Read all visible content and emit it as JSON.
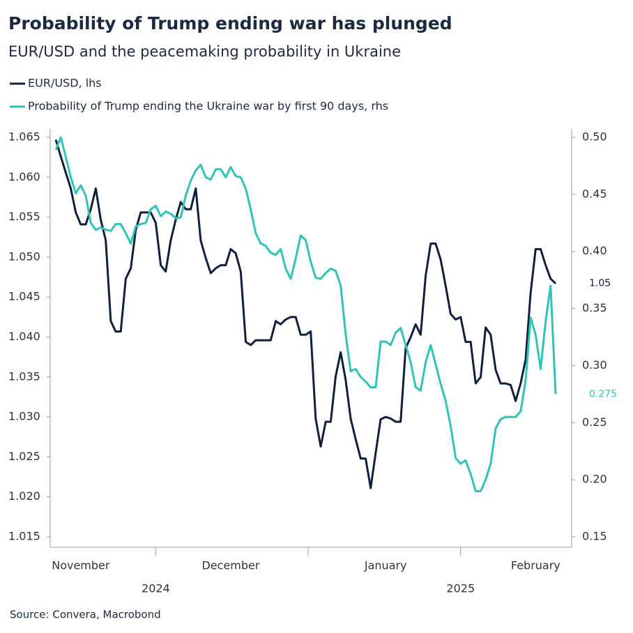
{
  "chart_data": {
    "type": "line",
    "title": "Probability of Trump ending war has plunged",
    "subtitle": "EUR/USD and the peacemaking probability in Ukraine",
    "source": "Source: Convera, Macrobond",
    "categories": [
      null,
      null,
      null,
      null,
      null,
      "November",
      null,
      null,
      null,
      null,
      null,
      null,
      null,
      null,
      null,
      null,
      null,
      null,
      null,
      null,
      null,
      null,
      null,
      null,
      null,
      null,
      null,
      null,
      null,
      null,
      null,
      null,
      null,
      null,
      null,
      "December",
      null,
      null,
      null,
      null,
      null,
      null,
      null,
      null,
      null,
      null,
      null,
      null,
      null,
      null,
      null,
      null,
      null,
      null,
      null,
      null,
      null,
      null,
      null,
      null,
      null,
      null,
      null,
      null,
      null,
      null,
      "January",
      null,
      null,
      null,
      null,
      null,
      null,
      null,
      null,
      null,
      null,
      null,
      null,
      null,
      null,
      null,
      null,
      null,
      null,
      null,
      null,
      null,
      null,
      null,
      null,
      null,
      null,
      null,
      null,
      null,
      "February",
      null,
      null,
      null,
      null
    ],
    "years": [
      "2024",
      "2025"
    ],
    "series": [
      {
        "name": "EUR/USD, lhs",
        "color": "#0f1f3d",
        "end_label": "1.05",
        "values": [
          1.0647,
          1.0626,
          1.0606,
          1.0586,
          1.0556,
          1.0541,
          1.0541,
          1.056,
          1.0586,
          1.0547,
          1.0521,
          1.042,
          1.0407,
          1.0407,
          1.0473,
          1.0486,
          1.0534,
          1.0556,
          1.0556,
          1.0556,
          1.0543,
          1.049,
          1.0482,
          1.0521,
          1.0547,
          1.0569,
          1.056,
          1.056,
          1.0586,
          1.0521,
          1.0499,
          1.048,
          1.0486,
          1.049,
          1.049,
          1.051,
          1.0505,
          1.0482,
          1.0394,
          1.039,
          1.0396,
          1.0396,
          1.0396,
          1.0396,
          1.042,
          1.0416,
          1.0422,
          1.0425,
          1.0425,
          1.0403,
          1.0403,
          1.0407,
          1.0298,
          1.0263,
          1.0294,
          1.0294,
          1.0351,
          1.0381,
          1.0346,
          1.0298,
          1.0272,
          1.0248,
          1.0248,
          1.0211,
          1.0255,
          1.0297,
          1.03,
          1.0298,
          1.0294,
          1.0294,
          1.0386,
          1.04,
          1.0416,
          1.0403,
          1.0477,
          1.0517,
          1.0517,
          1.0497,
          1.0464,
          1.0429,
          1.0422,
          1.0425,
          1.0394,
          1.0394,
          1.0342,
          1.035,
          1.0412,
          1.0403,
          1.0359,
          1.0342,
          1.0342,
          1.034,
          1.032,
          1.0342,
          1.0372,
          1.0455,
          1.051,
          1.051,
          1.049,
          1.0473,
          1.0467
        ]
      },
      {
        "name": "Probability of Trump ending the Ukraine war by first 90 days, rhs",
        "color": "#2ec4b6",
        "axis": "y2",
        "end_label": "0.275",
        "values": [
          0.489,
          0.5,
          0.483,
          0.465,
          0.451,
          0.458,
          0.449,
          0.425,
          0.419,
          0.421,
          0.419,
          0.418,
          0.424,
          0.424,
          0.416,
          0.407,
          0.422,
          0.424,
          0.425,
          0.437,
          0.44,
          0.431,
          0.435,
          0.433,
          0.429,
          0.43,
          0.449,
          0.462,
          0.471,
          0.476,
          0.465,
          0.463,
          0.472,
          0.472,
          0.465,
          0.474,
          0.466,
          0.465,
          0.455,
          0.437,
          0.416,
          0.407,
          0.405,
          0.399,
          0.397,
          0.402,
          0.385,
          0.376,
          0.394,
          0.414,
          0.41,
          0.391,
          0.377,
          0.376,
          0.381,
          0.385,
          0.383,
          0.37,
          0.327,
          0.295,
          0.297,
          0.29,
          0.286,
          0.281,
          0.281,
          0.321,
          0.321,
          0.318,
          0.329,
          0.333,
          0.318,
          0.303,
          0.281,
          0.278,
          0.303,
          0.318,
          0.301,
          0.284,
          0.269,
          0.247,
          0.219,
          0.214,
          0.217,
          0.205,
          0.19,
          0.19,
          0.2,
          0.214,
          0.245,
          0.253,
          0.255,
          0.255,
          0.255,
          0.26,
          0.287,
          0.342,
          0.327,
          0.297,
          0.339,
          0.37,
          0.275
        ]
      }
    ],
    "ylim": [
      1.015,
      1.065
    ],
    "yticks": [
      1.015,
      {
        "value": 1.02,
        "label": "1.020"
      },
      1.025,
      {
        "value": 1.03,
        "label": "1.030"
      },
      1.035,
      {
        "value": 1.04,
        "label": "1.040"
      },
      1.045,
      {
        "value": 1.05,
        "label": "1.050"
      },
      1.055,
      {
        "value": 1.06,
        "label": "1.060"
      },
      1.065
    ],
    "y2lim": [
      0.15,
      0.5
    ],
    "y2ticks": [
      0.15,
      {
        "value": 0.2,
        "label": "0.20"
      },
      0.25,
      {
        "value": 0.3,
        "label": "0.30"
      },
      0.35,
      {
        "value": 0.4,
        "label": "0.40"
      },
      0.45,
      {
        "value": 0.5,
        "label": "0.50"
      }
    ],
    "grid": false
  }
}
